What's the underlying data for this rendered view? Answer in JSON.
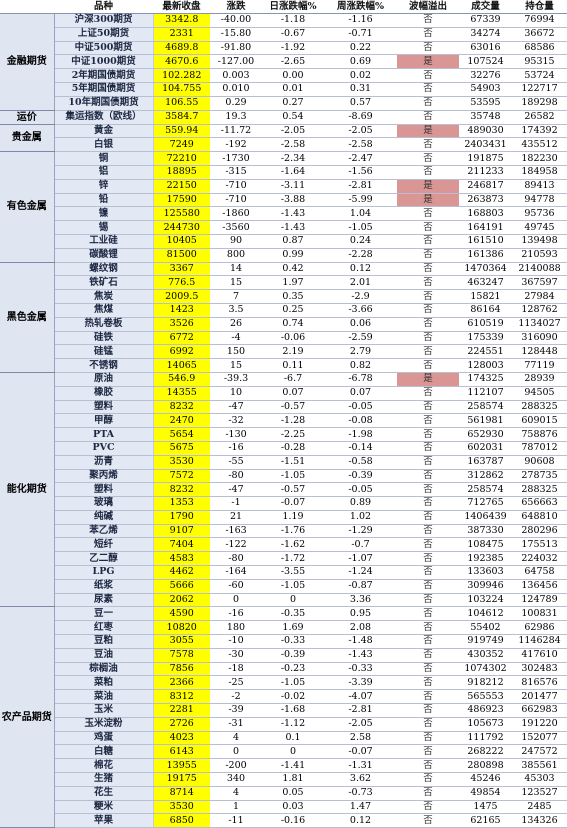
{
  "headers": [
    "品种",
    "最新收盘",
    "涨跌",
    "日涨跌幅%",
    "周涨跌幅%",
    "波幅溢出",
    "成交量",
    "持仓量"
  ],
  "groups": [
    {
      "name": "金融期货",
      "rows": [
        {
          "name": "沪深300期货",
          "close": "3342.8",
          "chg": "-40.00",
          "day": "-1.18",
          "week": "-1.16",
          "flag": "否",
          "vol": "67339",
          "oi": "76994"
        },
        {
          "name": "上证50期货",
          "close": "2331",
          "chg": "-15.80",
          "day": "-0.67",
          "week": "-0.71",
          "flag": "否",
          "vol": "34274",
          "oi": "36672"
        },
        {
          "name": "中证500期货",
          "close": "4689.8",
          "chg": "-91.80",
          "day": "-1.92",
          "week": "0.22",
          "flag": "否",
          "vol": "63016",
          "oi": "68586"
        },
        {
          "name": "中证1000期货",
          "close": "4670.6",
          "chg": "-127.00",
          "day": "-2.65",
          "week": "0.69",
          "flag": "是",
          "vol": "107524",
          "oi": "95315"
        },
        {
          "name": "2年期国债期货",
          "close": "102.282",
          "chg": "0.003",
          "day": "0.00",
          "week": "0.02",
          "flag": "否",
          "vol": "32276",
          "oi": "53724"
        },
        {
          "name": "5年期国债期货",
          "close": "104.755",
          "chg": "0.010",
          "day": "0.01",
          "week": "0.31",
          "flag": "否",
          "vol": "54903",
          "oi": "122717"
        },
        {
          "name": "10年期国债期货",
          "close": "106.55",
          "chg": "0.29",
          "day": "0.27",
          "week": "0.57",
          "flag": "否",
          "vol": "53595",
          "oi": "189298"
        }
      ]
    },
    {
      "name": "运价",
      "rows": [
        {
          "name": "集运指数（欧线）",
          "close": "3584.7",
          "chg": "19.3",
          "day": "0.54",
          "week": "-8.69",
          "flag": "否",
          "vol": "35748",
          "oi": "26582"
        }
      ]
    },
    {
      "name": "贵金属",
      "rows": [
        {
          "name": "黄金",
          "close": "559.94",
          "chg": "-11.72",
          "day": "-2.05",
          "week": "-2.05",
          "flag": "是",
          "vol": "489030",
          "oi": "174392"
        },
        {
          "name": "白银",
          "close": "7249",
          "chg": "-192",
          "day": "-2.58",
          "week": "-2.58",
          "flag": "否",
          "vol": "2403431",
          "oi": "435512"
        }
      ]
    },
    {
      "name": "有色金属",
      "rows": [
        {
          "name": "铜",
          "close": "72210",
          "chg": "-1730",
          "day": "-2.34",
          "week": "-2.47",
          "flag": "否",
          "vol": "191875",
          "oi": "182230"
        },
        {
          "name": "铝",
          "close": "18895",
          "chg": "-315",
          "day": "-1.64",
          "week": "-1.56",
          "flag": "否",
          "vol": "211233",
          "oi": "184958"
        },
        {
          "name": "锌",
          "close": "22150",
          "chg": "-710",
          "day": "-3.11",
          "week": "-2.81",
          "flag": "是",
          "vol": "246817",
          "oi": "89413"
        },
        {
          "name": "铅",
          "close": "17590",
          "chg": "-710",
          "day": "-3.88",
          "week": "-5.99",
          "flag": "是",
          "vol": "263873",
          "oi": "94778"
        },
        {
          "name": "镍",
          "close": "125580",
          "chg": "-1860",
          "day": "-1.43",
          "week": "1.04",
          "flag": "否",
          "vol": "168803",
          "oi": "95736"
        },
        {
          "name": "锡",
          "close": "244730",
          "chg": "-3560",
          "day": "-1.43",
          "week": "-1.05",
          "flag": "否",
          "vol": "164191",
          "oi": "49745"
        },
        {
          "name": "工业硅",
          "close": "10405",
          "chg": "90",
          "day": "0.87",
          "week": "0.24",
          "flag": "否",
          "vol": "161510",
          "oi": "139498"
        },
        {
          "name": "碳酸锂",
          "close": "81500",
          "chg": "800",
          "day": "0.99",
          "week": "-2.28",
          "flag": "否",
          "vol": "161386",
          "oi": "210593"
        }
      ]
    },
    {
      "name": "黑色金属",
      "rows": [
        {
          "name": "螺纹钢",
          "close": "3367",
          "chg": "14",
          "day": "0.42",
          "week": "0.12",
          "flag": "否",
          "vol": "1470364",
          "oi": "2140088"
        },
        {
          "name": "铁矿石",
          "close": "776.5",
          "chg": "15",
          "day": "1.97",
          "week": "2.01",
          "flag": "否",
          "vol": "463247",
          "oi": "367597"
        },
        {
          "name": "焦炭",
          "close": "2009.5",
          "chg": "7",
          "day": "0.35",
          "week": "-2.9",
          "flag": "否",
          "vol": "15821",
          "oi": "27984"
        },
        {
          "name": "焦煤",
          "close": "1423",
          "chg": "3.5",
          "day": "0.25",
          "week": "-3.66",
          "flag": "否",
          "vol": "86164",
          "oi": "128762"
        },
        {
          "name": "热轧卷板",
          "close": "3526",
          "chg": "26",
          "day": "0.74",
          "week": "0.06",
          "flag": "否",
          "vol": "610519",
          "oi": "1134027"
        },
        {
          "name": "硅铁",
          "close": "6772",
          "chg": "-4",
          "day": "-0.06",
          "week": "-2.59",
          "flag": "否",
          "vol": "175339",
          "oi": "316090"
        },
        {
          "name": "硅锰",
          "close": "6992",
          "chg": "150",
          "day": "2.19",
          "week": "2.79",
          "flag": "否",
          "vol": "224551",
          "oi": "128448"
        },
        {
          "name": "不锈钢",
          "close": "14065",
          "chg": "15",
          "day": "0.11",
          "week": "0.82",
          "flag": "否",
          "vol": "128003",
          "oi": "77119"
        }
      ]
    },
    {
      "name": "能化期货",
      "rows": [
        {
          "name": "原油",
          "close": "546.9",
          "chg": "-39.3",
          "day": "-6.7",
          "week": "-6.78",
          "flag": "是",
          "vol": "174325",
          "oi": "28939"
        },
        {
          "name": "橡胶",
          "close": "14355",
          "chg": "10",
          "day": "0.07",
          "week": "0.07",
          "flag": "否",
          "vol": "112107",
          "oi": "94505"
        },
        {
          "name": "塑料",
          "close": "8232",
          "chg": "-47",
          "day": "-0.57",
          "week": "-0.05",
          "flag": "否",
          "vol": "258574",
          "oi": "288325"
        },
        {
          "name": "甲醇",
          "close": "2470",
          "chg": "-32",
          "day": "-1.28",
          "week": "-0.08",
          "flag": "否",
          "vol": "561981",
          "oi": "609015"
        },
        {
          "name": "PTA",
          "close": "5654",
          "chg": "-130",
          "day": "-2.25",
          "week": "-1.98",
          "flag": "否",
          "vol": "652930",
          "oi": "758876"
        },
        {
          "name": "PVC",
          "close": "5675",
          "chg": "-16",
          "day": "-0.28",
          "week": "-0.14",
          "flag": "否",
          "vol": "602031",
          "oi": "787012"
        },
        {
          "name": "沥青",
          "close": "3530",
          "chg": "-55",
          "day": "-1.51",
          "week": "-0.58",
          "flag": "否",
          "vol": "163787",
          "oi": "90608"
        },
        {
          "name": "聚丙烯",
          "close": "7572",
          "chg": "-80",
          "day": "-1.05",
          "week": "-0.39",
          "flag": "否",
          "vol": "312862",
          "oi": "278735"
        },
        {
          "name": "塑料",
          "close": "8232",
          "chg": "-47",
          "day": "-0.57",
          "week": "-0.05",
          "flag": "否",
          "vol": "258574",
          "oi": "288325"
        },
        {
          "name": "玻璃",
          "close": "1353",
          "chg": "-1",
          "day": "-0.07",
          "week": "0.89",
          "flag": "否",
          "vol": "712765",
          "oi": "656663"
        },
        {
          "name": "纯碱",
          "close": "1790",
          "chg": "21",
          "day": "1.19",
          "week": "1.02",
          "flag": "否",
          "vol": "1406439",
          "oi": "648810"
        },
        {
          "name": "苯乙烯",
          "close": "9107",
          "chg": "-163",
          "day": "-1.76",
          "week": "-1.29",
          "flag": "否",
          "vol": "387330",
          "oi": "280296"
        },
        {
          "name": "短纤",
          "close": "7404",
          "chg": "-122",
          "day": "-1.62",
          "week": "-0.7",
          "flag": "否",
          "vol": "108475",
          "oi": "175513"
        },
        {
          "name": "乙二醇",
          "close": "4583",
          "chg": "-80",
          "day": "-1.72",
          "week": "-1.07",
          "flag": "否",
          "vol": "192385",
          "oi": "224032"
        },
        {
          "name": "LPG",
          "close": "4462",
          "chg": "-164",
          "day": "-3.55",
          "week": "-1.24",
          "flag": "否",
          "vol": "133603",
          "oi": "64758"
        },
        {
          "name": "纸浆",
          "close": "5666",
          "chg": "-60",
          "day": "-1.05",
          "week": "-0.87",
          "flag": "否",
          "vol": "309946",
          "oi": "136456"
        },
        {
          "name": "尿素",
          "close": "2062",
          "chg": "0",
          "day": "0",
          "week": "3.36",
          "flag": "否",
          "vol": "103224",
          "oi": "124789"
        }
      ]
    },
    {
      "name": "农产品期货",
      "rows": [
        {
          "name": "豆一",
          "close": "4590",
          "chg": "-16",
          "day": "-0.35",
          "week": "0.95",
          "flag": "否",
          "vol": "104612",
          "oi": "100831"
        },
        {
          "name": "红枣",
          "close": "10820",
          "chg": "180",
          "day": "1.69",
          "week": "2.08",
          "flag": "否",
          "vol": "55402",
          "oi": "62986"
        },
        {
          "name": "豆粕",
          "close": "3055",
          "chg": "-10",
          "day": "-0.33",
          "week": "-1.48",
          "flag": "否",
          "vol": "919749",
          "oi": "1146284"
        },
        {
          "name": "豆油",
          "close": "7578",
          "chg": "-30",
          "day": "-0.39",
          "week": "-1.43",
          "flag": "否",
          "vol": "430352",
          "oi": "417610"
        },
        {
          "name": "棕榈油",
          "close": "7856",
          "chg": "-18",
          "day": "-0.23",
          "week": "-0.33",
          "flag": "否",
          "vol": "1074302",
          "oi": "302483"
        },
        {
          "name": "菜粕",
          "close": "2366",
          "chg": "-25",
          "day": "-1.05",
          "week": "-3.39",
          "flag": "否",
          "vol": "918212",
          "oi": "816576"
        },
        {
          "name": "菜油",
          "close": "8312",
          "chg": "-2",
          "day": "-0.02",
          "week": "-4.07",
          "flag": "否",
          "vol": "565553",
          "oi": "201477"
        },
        {
          "name": "玉米",
          "close": "2281",
          "chg": "-39",
          "day": "-1.68",
          "week": "-2.81",
          "flag": "否",
          "vol": "486923",
          "oi": "662983"
        },
        {
          "name": "玉米淀粉",
          "close": "2726",
          "chg": "-31",
          "day": "-1.12",
          "week": "-2.05",
          "flag": "否",
          "vol": "105673",
          "oi": "191220"
        },
        {
          "name": "鸡蛋",
          "close": "4023",
          "chg": "4",
          "day": "0.1",
          "week": "2.58",
          "flag": "否",
          "vol": "111792",
          "oi": "152077"
        },
        {
          "name": "白糖",
          "close": "6143",
          "chg": "0",
          "day": "0",
          "week": "-0.07",
          "flag": "否",
          "vol": "268222",
          "oi": "247572"
        },
        {
          "name": "棉花",
          "close": "13955",
          "chg": "-200",
          "day": "-1.41",
          "week": "-1.31",
          "flag": "否",
          "vol": "280898",
          "oi": "385561"
        },
        {
          "name": "生猪",
          "close": "19175",
          "chg": "340",
          "day": "1.81",
          "week": "3.62",
          "flag": "否",
          "vol": "45246",
          "oi": "45303"
        },
        {
          "name": "花生",
          "close": "8714",
          "chg": "4",
          "day": "0.05",
          "week": "-0.73",
          "flag": "否",
          "vol": "49854",
          "oi": "123527"
        },
        {
          "name": "粳米",
          "close": "3530",
          "chg": "1",
          "day": "0.03",
          "week": "1.47",
          "flag": "否",
          "vol": "1475",
          "oi": "2485"
        },
        {
          "name": "苹果",
          "close": "6850",
          "chg": "-11",
          "day": "-0.16",
          "week": "0.12",
          "flag": "否",
          "vol": "62165",
          "oi": "134326"
        }
      ]
    }
  ],
  "flag_yes_value": "是",
  "colors": {
    "close_column": "#ffff00",
    "flag_highlight": "#da9694",
    "group_cell": "#dfe6f2",
    "name_cell": "#e3e9f4"
  }
}
